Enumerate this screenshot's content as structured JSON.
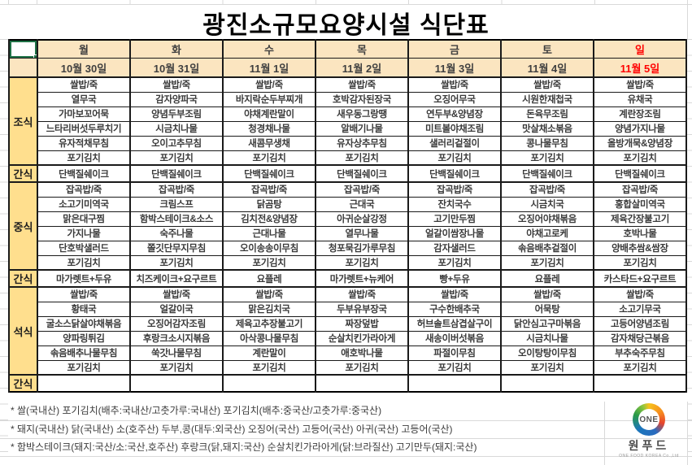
{
  "title": "광진소규모요양시설 식단표",
  "colors": {
    "header_fill": "#fbe5c0",
    "label_fill": "#ffdf8e",
    "sunday": "#ff0000",
    "selection": "#1e7145",
    "border": "#1a1a1a"
  },
  "days": [
    {
      "name": "월",
      "date": "10월 30일"
    },
    {
      "name": "화",
      "date": "10월 31일"
    },
    {
      "name": "수",
      "date": "11월 1일"
    },
    {
      "name": "목",
      "date": "11월 2일"
    },
    {
      "name": "금",
      "date": "11월 3일"
    },
    {
      "name": "토",
      "date": "11월 4일"
    },
    {
      "name": "일",
      "date": "11월 5일"
    }
  ],
  "sections": [
    {
      "label": "조식",
      "type": "meal",
      "rows": [
        [
          "쌀밥/죽",
          "쌀밥/죽",
          "쌀밥/죽",
          "쌀밥/죽",
          "쌀밥/죽",
          "쌀밥/죽",
          "쌀밥/죽"
        ],
        [
          "열무국",
          "감자양파국",
          "바지락순두부찌개",
          "호박감자된장국",
          "오징어무국",
          "시원한재첩국",
          "유채국"
        ],
        [
          "가마보꼬어묵",
          "양념두부조림",
          "야채계란말이",
          "새우동그랑땡",
          "연두부&양념장",
          "돈육무조림",
          "계란장조림"
        ],
        [
          "느타리버섯두루치기",
          "시금치나물",
          "청경채나물",
          "알배기나물",
          "미트볼야채조림",
          "맛살채소볶음",
          "양념가지나물"
        ],
        [
          "유자적채무침",
          "오이고추무침",
          "새콤무생채",
          "유자상추무침",
          "샐러리겉절이",
          "콩나물무침",
          "올방개묵&양념장"
        ],
        [
          "포기김치",
          "포기김치",
          "포기김치",
          "포기김치",
          "포기김치",
          "포기김치",
          "포기김치"
        ]
      ]
    },
    {
      "label": "간식",
      "type": "snack",
      "rows": [
        [
          "단백질쉐이크",
          "단백질쉐이크",
          "단백질쉐이크",
          "단백질쉐이크",
          "단백질쉐이크",
          "단백질쉐이크",
          "단백질쉐이크"
        ]
      ]
    },
    {
      "label": "중식",
      "type": "meal",
      "rows": [
        [
          "잡곡밥/죽",
          "잡곡밥/죽",
          "잡곡밥/죽",
          "잡곡밥/죽",
          "잡곡밥/죽",
          "잡곡밥/죽",
          "잡곡밥/죽"
        ],
        [
          "소고기미역국",
          "크림스프",
          "닭곰탕",
          "근대국",
          "잔치국수",
          "시금치국",
          "홍합살미역국"
        ],
        [
          "맑은대구찜",
          "함박스테이크&소스",
          "김치전&양념장",
          "아귀순살강정",
          "고기만두찜",
          "오징어야채볶음",
          "제육간장불고기"
        ],
        [
          "가지나물",
          "숙주나물",
          "근대나물",
          "열무나물",
          "얼갈이쌈장나물",
          "야채고로케",
          "호박나물"
        ],
        [
          "단호박샐러드",
          "쫄깃단무지무침",
          "오이송송이무침",
          "청포묵김가루무침",
          "감자샐러드",
          "솎음배추겉절이",
          "양배추쌈&쌈장"
        ],
        [
          "포기김치",
          "포기김치",
          "포기김치",
          "포기김치",
          "포기김치",
          "포기김치",
          "포기김치"
        ]
      ]
    },
    {
      "label": "간식",
      "type": "snack",
      "rows": [
        [
          "마가렛트+두유",
          "치즈케이크+요구르트",
          "요플레",
          "마가렛트+뉴케어",
          "빵+두유",
          "요플레",
          "카스타드+요구르트"
        ]
      ]
    },
    {
      "label": "석식",
      "type": "meal",
      "rows": [
        [
          "쌀밥/죽",
          "쌀밥/죽",
          "쌀밥/죽",
          "쌀밥/죽",
          "쌀밥/죽",
          "쌀밥/죽",
          "쌀밥/죽"
        ],
        [
          "황태국",
          "얼갈이국",
          "맑은김치국",
          "두부유부장국",
          "구수한배추국",
          "어묵탕",
          "소고기무국"
        ],
        [
          "굴소스닭살야채볶음",
          "오징어감자조림",
          "제육고추장불고기",
          "짜장덮밥",
          "허브솔트삼겹살구이",
          "닭안심고구마볶음",
          "고등어양념조림"
        ],
        [
          "양파링튀김",
          "후랑크소시지볶음",
          "아삭콩나물무침",
          "순살치킨가라아게",
          "새송이버섯볶음",
          "시금치나물",
          "감자채당근볶음"
        ],
        [
          "솎음배추나물무침",
          "쑥갓나물무침",
          "계란말이",
          "애호박나물",
          "파절이무침",
          "오이탕탕이무침",
          "부추숙주무침"
        ],
        [
          "포기김치",
          "포기김치",
          "포기김치",
          "포기김치",
          "포기김치",
          "포기김치",
          "포기김치"
        ]
      ]
    },
    {
      "label": "간식",
      "type": "snack",
      "rows": [
        [
          "",
          "",
          "",
          "",
          "",
          "",
          ""
        ]
      ]
    }
  ],
  "footnotes": [
    "* 쌀(국내산) 포기김치(배추:국내산/고춧가루:국내산) 포기김치(배추:중국산/고춧가루:중국산)",
    "* 돼지(국내산) 닭(국내산) 소(호주산) 두부,콩(대두:외국산) 오징어(국산) 고등어(국산) 아귀(국산) 고등어(국산)",
    "* 함박스테이크(돼지:국산/소:국산,호주산) 후랑크(닭,돼지:국산) 순살치킨가라아게(닭:브라질산) 고기만두(돼지:국산)"
  ],
  "logo": {
    "badge": "ONE",
    "name": "원푸드",
    "subtext": "ONE FOOD KOREA Co.,Ltd"
  }
}
